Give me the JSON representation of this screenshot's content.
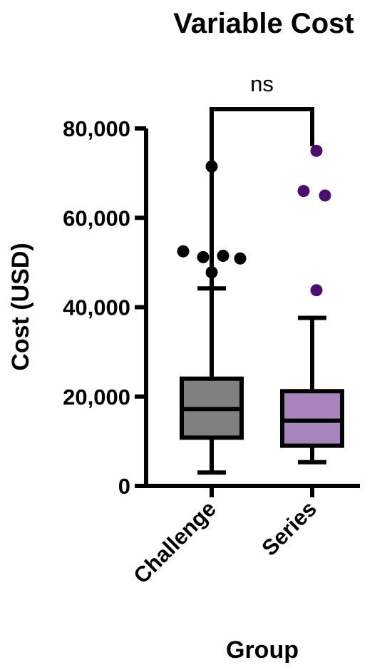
{
  "chart_data": {
    "type": "box",
    "title": "Variable Cost",
    "xlabel": "Group",
    "ylabel": "Cost (USD)",
    "ylim": [
      0,
      80000
    ],
    "yticks": [
      0,
      20000,
      40000,
      60000,
      80000
    ],
    "ytick_labels": [
      "0",
      "20,000",
      "40,000",
      "60,000",
      "80,000"
    ],
    "categories": [
      "Challenge",
      "Series"
    ],
    "series": [
      {
        "category": "Challenge",
        "color": "#808080",
        "outlier_color": "#000000",
        "whisker_low": 3000,
        "q1": 10800,
        "median": 17200,
        "q3": 24000,
        "whisker_high": 44200,
        "outliers": [
          71500,
          52500,
          51200,
          51500,
          50900,
          47800
        ]
      },
      {
        "category": "Series",
        "color": "#a784bd",
        "outlier_color": "#4b0f6e",
        "whisker_low": 5300,
        "q1": 9000,
        "median": 14600,
        "q3": 21200,
        "whisker_high": 37600,
        "outliers": [
          75000,
          66000,
          65000,
          43800
        ]
      }
    ],
    "significance": {
      "label": "ns",
      "between": [
        "Challenge",
        "Series"
      ]
    },
    "grid": false,
    "legend": "none"
  }
}
